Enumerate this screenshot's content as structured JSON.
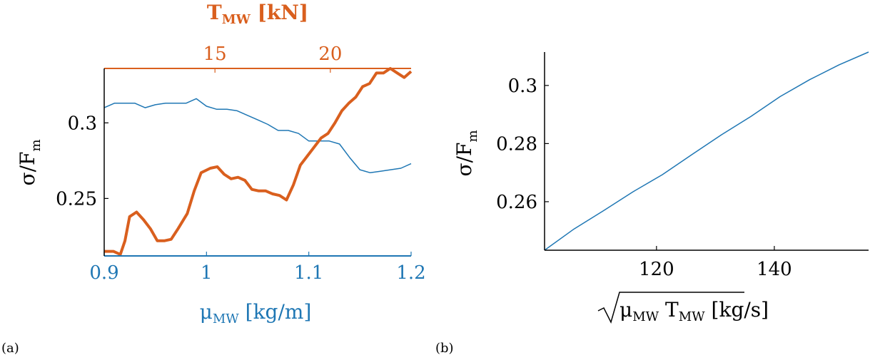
{
  "colors": {
    "blue": "#1f77b4",
    "orange": "#d95f1e",
    "black": "#000000"
  },
  "chart_data": [
    {
      "type": "line",
      "panel_label": "(a)",
      "twin_x_axes": true,
      "grid": false,
      "ylabel": {
        "main": "σ/F",
        "sub": "m"
      },
      "yticks": [
        "0.25",
        "0.3"
      ],
      "ylim": [
        0.212,
        0.336
      ],
      "xbottom": {
        "label": {
          "main": "μ",
          "sub": "MW",
          "rest": " [kg/m]"
        },
        "ticks": [
          "0.9",
          "1",
          "1.1",
          "1.2"
        ],
        "range": [
          0.9,
          1.2
        ],
        "color": "#1f77b4"
      },
      "xtop": {
        "label": {
          "main": "T",
          "sub": "MW",
          "rest": " [kN]"
        },
        "ticks": [
          "15",
          "20"
        ],
        "range": [
          10.2,
          23.5
        ],
        "color": "#d95f1e"
      },
      "series": [
        {
          "axis": "bottom",
          "color": "#1f77b4",
          "x": [
            0.9,
            0.91,
            0.92,
            0.93,
            0.94,
            0.95,
            0.96,
            0.97,
            0.98,
            0.99,
            1.0,
            1.01,
            1.02,
            1.03,
            1.04,
            1.05,
            1.06,
            1.07,
            1.08,
            1.09,
            1.1,
            1.11,
            1.12,
            1.13,
            1.14,
            1.15,
            1.16,
            1.17,
            1.18,
            1.19,
            1.2
          ],
          "y": [
            0.31,
            0.313,
            0.313,
            0.313,
            0.31,
            0.312,
            0.313,
            0.313,
            0.313,
            0.316,
            0.311,
            0.309,
            0.309,
            0.308,
            0.305,
            0.302,
            0.299,
            0.295,
            0.295,
            0.293,
            0.288,
            0.288,
            0.288,
            0.286,
            0.277,
            0.269,
            0.267,
            0.268,
            0.269,
            0.27,
            0.273
          ]
        },
        {
          "axis": "top",
          "color": "#d95f1e",
          "x": [
            10.2,
            10.6,
            10.9,
            11.1,
            11.3,
            11.6,
            11.9,
            12.2,
            12.5,
            12.8,
            13.1,
            13.4,
            13.8,
            14.1,
            14.4,
            14.8,
            15.1,
            15.4,
            15.7,
            16.0,
            16.3,
            16.6,
            16.9,
            17.2,
            17.5,
            17.8,
            18.1,
            18.4,
            18.7,
            19.0,
            19.3,
            19.6,
            19.9,
            20.2,
            20.5,
            20.8,
            21.1,
            21.4,
            21.7,
            22.0,
            22.3,
            22.6,
            22.9,
            23.2,
            23.5
          ],
          "y": [
            0.215,
            0.215,
            0.213,
            0.222,
            0.238,
            0.241,
            0.236,
            0.23,
            0.222,
            0.222,
            0.223,
            0.23,
            0.24,
            0.255,
            0.267,
            0.27,
            0.271,
            0.266,
            0.263,
            0.264,
            0.262,
            0.256,
            0.255,
            0.255,
            0.253,
            0.252,
            0.249,
            0.259,
            0.272,
            0.278,
            0.284,
            0.29,
            0.293,
            0.3,
            0.308,
            0.313,
            0.317,
            0.324,
            0.326,
            0.333,
            0.333,
            0.336,
            0.333,
            0.33,
            0.334
          ]
        }
      ]
    },
    {
      "type": "line",
      "panel_label": "(b)",
      "grid": false,
      "ylabel": {
        "main": "σ/F",
        "sub": "m"
      },
      "yticks": [
        "0.26",
        "0.28",
        "0.3"
      ],
      "ylim": [
        0.2433,
        0.3115
      ],
      "xlabel": {
        "main": "μ",
        "sub1": "MW",
        "mid": " T",
        "sub2": "MW",
        "rest": " [kg/s]"
      },
      "xticks": [
        "120",
        "140"
      ],
      "xlim": [
        101,
        156
      ],
      "series": [
        {
          "color": "#1f77b4",
          "x": [
            101,
            106,
            111,
            116,
            121,
            126,
            131,
            136,
            141,
            146,
            151,
            156
          ],
          "y": [
            0.2433,
            0.2506,
            0.2569,
            0.2634,
            0.2693,
            0.2762,
            0.283,
            0.2893,
            0.2962,
            0.302,
            0.3071,
            0.3115
          ]
        }
      ]
    }
  ]
}
